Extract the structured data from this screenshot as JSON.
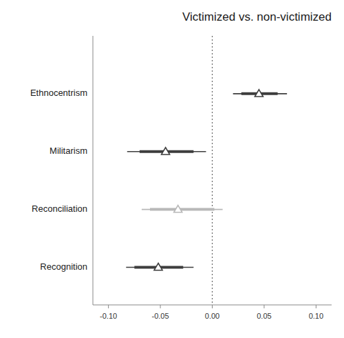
{
  "chart_data": {
    "type": "coefficient",
    "title": "Victimized vs. non-victimized",
    "orientation": "horizontal",
    "categories": [
      "Ethnocentrism",
      "Militarism",
      "Reconciliation",
      "Recognition"
    ],
    "values": [
      0.045,
      -0.045,
      -0.033,
      -0.052
    ],
    "ci90_low": [
      0.028,
      -0.07,
      -0.06,
      -0.075
    ],
    "ci90_high": [
      0.063,
      -0.018,
      0.002,
      -0.028
    ],
    "ci95_low": [
      0.02,
      -0.082,
      -0.068,
      -0.083
    ],
    "ci95_high": [
      0.072,
      -0.006,
      0.01,
      -0.018
    ],
    "colors": [
      "#3d3d3d",
      "#3d3d3d",
      "#b8b8b8",
      "#3d3d3d"
    ],
    "marker": "triangle",
    "reference_x": 0,
    "xlim": [
      -0.115,
      0.115
    ],
    "xticks": [
      {
        "value": -0.1,
        "label": "-0.10"
      },
      -0.05,
      {
        "value": 0,
        "label": "0.00"
      },
      0.05,
      {
        "value": 0.1,
        "label": "0.10"
      }
    ],
    "grid": false
  }
}
